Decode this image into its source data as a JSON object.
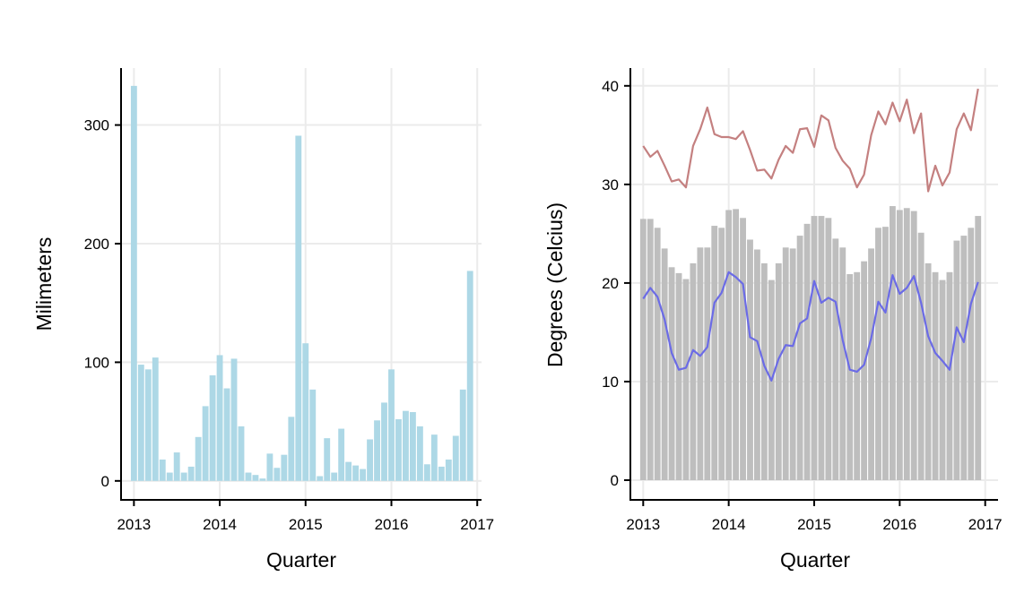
{
  "chart_data": [
    {
      "type": "bar",
      "title": "",
      "xlabel": "Quarter",
      "ylabel": "Milimeters",
      "xlim": [
        2012.85,
        2017.05
      ],
      "ylim": [
        -16,
        348
      ],
      "x_ticks": [
        2013,
        2014,
        2015,
        2016,
        2017
      ],
      "x_tick_labels": [
        "2013",
        "2014",
        "2015",
        "2016",
        "2017"
      ],
      "y_ticks": [
        0,
        100,
        200,
        300
      ],
      "y_tick_labels": [
        "0",
        "100",
        "200",
        "300"
      ],
      "grid": true,
      "legend": "none",
      "colors": {
        "bars": "#add8e6"
      },
      "series": [
        {
          "x_start": 2013.0,
          "x_step": 0.08333,
          "values": [
            333,
            98,
            94,
            104,
            18,
            7,
            24,
            7,
            12,
            37,
            63,
            89,
            106,
            78,
            103,
            46,
            7,
            5,
            2,
            23,
            11,
            22,
            54,
            291,
            116,
            77,
            4,
            36,
            7,
            44,
            16,
            13,
            10,
            35,
            51,
            66,
            94,
            52,
            59,
            58,
            46,
            14,
            39,
            12,
            18,
            38,
            77,
            177
          ]
        }
      ]
    },
    {
      "type": "bar+line",
      "title": "",
      "xlabel": "Quarter",
      "ylabel": "Degrees (Celcius)",
      "xlim": [
        2012.85,
        2017.15
      ],
      "ylim": [
        -2,
        41.8
      ],
      "x_ticks": [
        2013,
        2014,
        2015,
        2016,
        2017
      ],
      "x_tick_labels": [
        "2013",
        "2014",
        "2015",
        "2016",
        "2017"
      ],
      "y_ticks": [
        0,
        10,
        20,
        30,
        40
      ],
      "y_tick_labels": [
        "0",
        "10",
        "20",
        "30",
        "40"
      ],
      "grid": true,
      "legend": "none",
      "colors": {
        "bars": "#bebebe",
        "upper_line": "#c48080",
        "lower_line": "#6b6be6"
      },
      "x_start": 2013.0,
      "x_step": 0.08333,
      "bars": [
        26.5,
        26.5,
        25.6,
        23.5,
        21.6,
        21.0,
        20.4,
        22.0,
        23.6,
        23.6,
        25.8,
        25.6,
        27.4,
        27.5,
        26.6,
        24.4,
        23.4,
        22.0,
        20.3,
        22.0,
        23.6,
        23.5,
        24.8,
        26.0,
        26.8,
        26.8,
        26.6,
        24.5,
        23.6,
        20.9,
        21.1,
        22.2,
        23.5,
        25.6,
        25.7,
        27.8,
        27.4,
        27.6,
        27.3,
        25.1,
        22.0,
        21.1,
        20.3,
        21.1,
        24.3,
        24.8,
        25.6,
        26.8
      ],
      "series": [
        {
          "values": [
            33.9,
            32.8,
            33.4,
            31.9,
            30.3,
            30.5,
            29.7,
            33.9,
            35.6,
            37.8,
            35.1,
            34.8,
            34.8,
            34.6,
            35.4,
            33.5,
            31.4,
            31.5,
            30.6,
            32.5,
            33.9,
            33.2,
            35.6,
            35.7,
            33.8,
            37.0,
            36.5,
            33.7,
            32.4,
            31.6,
            29.7,
            31.0,
            35.0,
            37.4,
            36.1,
            38.3,
            36.4,
            38.6,
            35.2,
            37.2,
            29.3,
            31.9,
            29.9,
            31.2,
            35.6,
            37.2,
            35.5,
            39.7
          ]
        },
        {
          "values": [
            18.4,
            19.5,
            18.6,
            16.3,
            12.9,
            11.2,
            11.4,
            13.2,
            12.6,
            13.5,
            18.0,
            19.0,
            21.1,
            20.6,
            19.9,
            14.5,
            14.1,
            11.6,
            10.1,
            12.3,
            13.7,
            13.6,
            15.9,
            16.4,
            20.2,
            18.0,
            18.5,
            18.1,
            14.2,
            11.2,
            11.0,
            11.7,
            14.4,
            18.1,
            17.0,
            20.8,
            18.9,
            19.5,
            20.7,
            18.0,
            14.6,
            12.9,
            12.1,
            11.2,
            15.5,
            14.0,
            17.9,
            20.1
          ]
        }
      ]
    }
  ]
}
